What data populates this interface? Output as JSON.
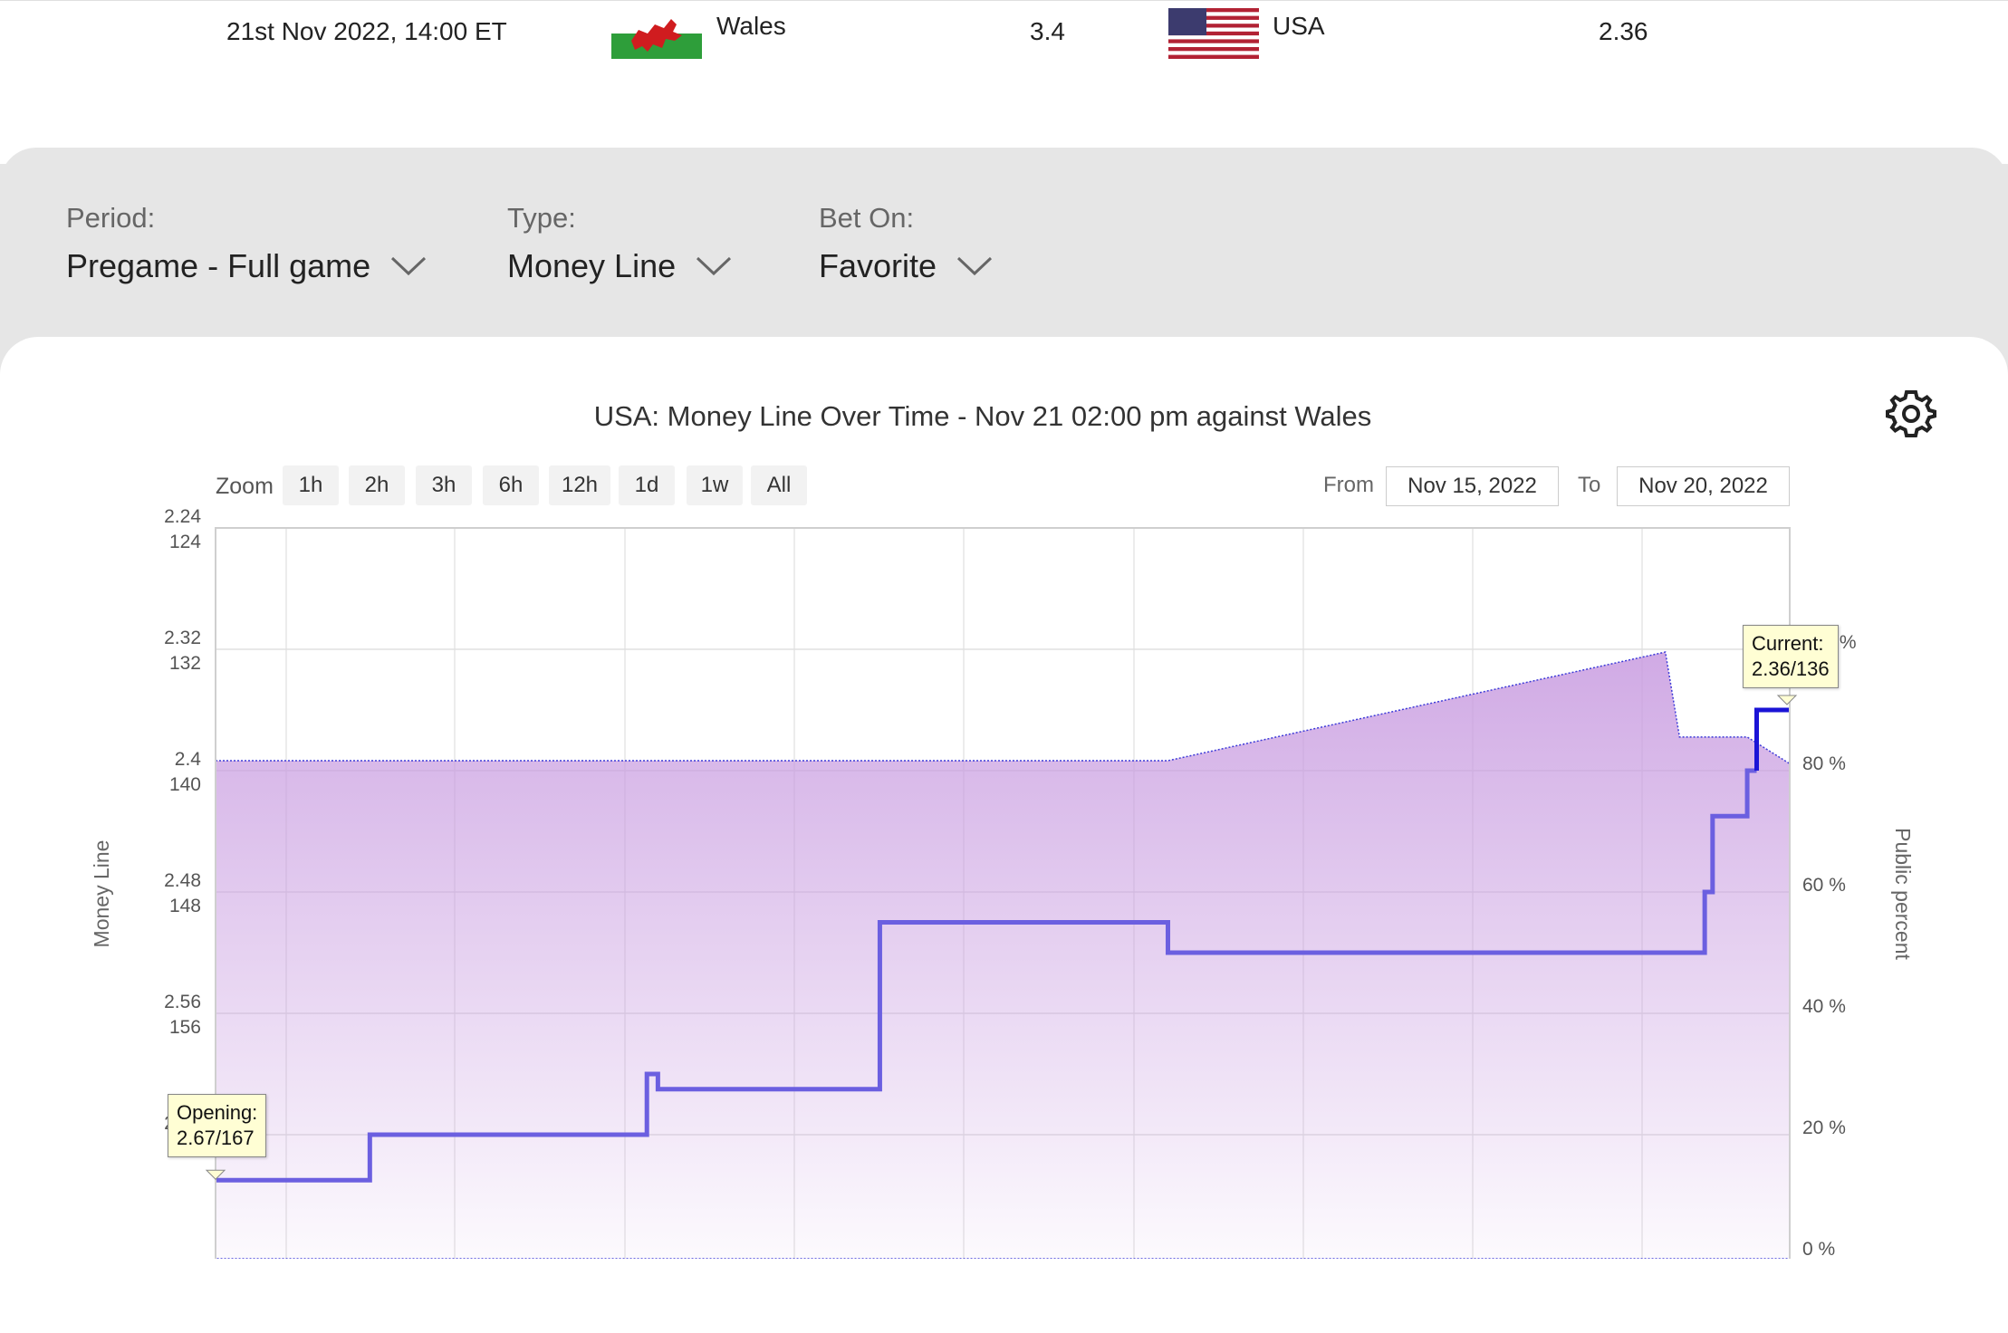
{
  "match": {
    "datetime": "21st Nov 2022, 14:00 ET",
    "team1": {
      "name": "Wales",
      "odds": "3.4"
    },
    "team2": {
      "name": "USA",
      "odds": "2.36"
    }
  },
  "filters": {
    "period": {
      "label": "Period:",
      "value": "Pregame - Full game"
    },
    "type": {
      "label": "Type:",
      "value": "Money Line"
    },
    "bet_on": {
      "label": "Bet On:",
      "value": "Favorite"
    }
  },
  "chart": {
    "title": "USA: Money Line Over Time - Nov 21 02:00 pm against Wales",
    "zoom_label": "Zoom",
    "zoom_buttons": [
      "1h",
      "2h",
      "3h",
      "6h",
      "12h",
      "1d",
      "1w",
      "All"
    ],
    "from_label": "From",
    "from_value": "Nov 15, 2022",
    "to_label": "To",
    "to_value": "Nov 20, 2022",
    "opening_tooltip": [
      "Opening:",
      "2.67/167"
    ],
    "current_tooltip": [
      "Current:",
      "2.36/136"
    ]
  },
  "colors": {
    "line": "#6b5fe0",
    "line_last": "#1b14d6",
    "area": "#c89be0"
  },
  "chart_data": {
    "type": "line",
    "ylabel": "Money Line",
    "y2label": "Public percent",
    "left_ticks": [
      {
        "top": "2.24",
        "bottom": "124"
      },
      {
        "top": "2.32",
        "bottom": "132"
      },
      {
        "top": "2.4",
        "bottom": "140"
      },
      {
        "top": "2.48",
        "bottom": "148"
      },
      {
        "top": "2.56",
        "bottom": "156"
      },
      {
        "top": "2.64",
        "bottom": "164"
      }
    ],
    "ylim": [
      124,
      172
    ],
    "right_ticks": [
      "100 %",
      "80 %",
      "60 %",
      "40 %",
      "20 %",
      "0 %"
    ],
    "y2lim": [
      0,
      100
    ],
    "xlim": [
      0,
      100
    ],
    "money_line": {
      "name": "Money Line",
      "x": [
        0,
        9.8,
        9.8,
        27.4,
        27.4,
        28.1,
        28.1,
        42.2,
        42.2,
        60.5,
        60.5,
        94.6,
        94.6,
        95.1,
        95.1,
        97.3,
        97.3,
        97.9,
        97.9,
        100
      ],
      "y": [
        167,
        167,
        164,
        164,
        160,
        160,
        161,
        161,
        150,
        150,
        152,
        152,
        148,
        148,
        143,
        143,
        140,
        140,
        136,
        136
      ]
    },
    "public_percent": {
      "name": "Public percent",
      "x": [
        0,
        60.5,
        92.1,
        93.0,
        97.3,
        100
      ],
      "y": [
        80.3,
        80.3,
        98.2,
        84.2,
        84.2,
        79.8
      ]
    }
  }
}
